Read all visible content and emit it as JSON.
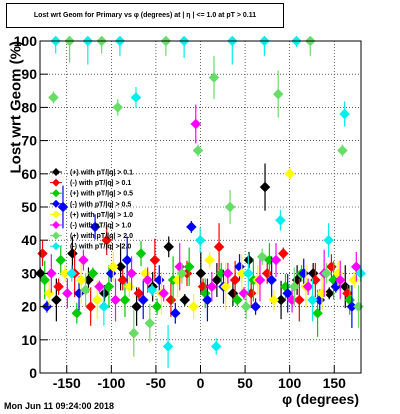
{
  "chart_data": {
    "type": "scatter",
    "title": "Lost wrt Geom for Primary vs φ (degrees) at | η | <= 1.0 at pT > 0.11",
    "xlabel": "φ (degrees)",
    "ylabel": "Lost wrt Geom (%)",
    "xlim": [
      -180,
      180
    ],
    "ylim": [
      0,
      100
    ],
    "xticks": [
      -150,
      -100,
      -50,
      0,
      50,
      100,
      150
    ],
    "yticks": [
      0,
      10,
      20,
      30,
      40,
      50,
      60,
      70,
      80,
      90,
      100
    ],
    "grid": true,
    "legend_position": "left-middle",
    "series": [
      {
        "name": "(+) with pT/|q| > 0.1",
        "color": "#000000",
        "x": [
          -171,
          -153,
          -135,
          -117,
          -99,
          -81,
          -63,
          -45,
          -27,
          -9,
          9,
          27,
          45,
          63,
          81,
          99,
          117,
          135,
          153,
          171
        ],
        "y": [
          30,
          22,
          36,
          28,
          24,
          32,
          20,
          26,
          38,
          22,
          30,
          28,
          24,
          34,
          56,
          22,
          28,
          30,
          24,
          26
        ]
      },
      {
        "name": "(-) with pT/|q| > 0.1",
        "color": "#ff0000",
        "x": [
          -171,
          -153,
          -135,
          -117,
          -99,
          -81,
          -63,
          -45,
          -27,
          -9,
          9,
          27,
          45,
          63,
          81,
          99,
          117,
          135,
          153,
          171
        ],
        "y": [
          36,
          26,
          30,
          20,
          40,
          28,
          24,
          34,
          22,
          30,
          26,
          38,
          28,
          24,
          30,
          36,
          22,
          28,
          32,
          24
        ]
      },
      {
        "name": "(+) with pT/|q| > 0.5",
        "color": "#00cc00",
        "x": [
          -171,
          -153,
          -135,
          -117,
          -99,
          -81,
          -63,
          -45,
          -27,
          -9,
          9,
          27,
          45,
          63,
          81,
          99,
          117,
          135,
          153,
          171
        ],
        "y": [
          28,
          34,
          18,
          30,
          26,
          22,
          36,
          20,
          28,
          32,
          24,
          30,
          22,
          28,
          34,
          26,
          30,
          18,
          28,
          22
        ]
      },
      {
        "name": "(-) with pT/|q| > 0.5",
        "color": "#0000ff",
        "x": [
          -171,
          -153,
          -135,
          -117,
          -99,
          -81,
          -63,
          -45,
          -27,
          -9,
          9,
          27,
          45,
          63,
          81,
          99,
          117,
          135,
          153,
          171
        ],
        "y": [
          20,
          50,
          24,
          44,
          30,
          34,
          22,
          28,
          18,
          44,
          22,
          26,
          32,
          20,
          28,
          24,
          30,
          22,
          26,
          20
        ]
      },
      {
        "name": "(+) with pT/|q| > 1.0",
        "color": "#ffff00",
        "x": [
          -171,
          -153,
          -135,
          -117,
          -99,
          -81,
          -63,
          -45,
          -27,
          -9,
          9,
          27,
          45,
          63,
          81,
          99,
          117,
          135,
          153,
          171
        ],
        "y": [
          24,
          30,
          28,
          22,
          32,
          26,
          30,
          24,
          28,
          20,
          34,
          26,
          30,
          28,
          22,
          60,
          26,
          24,
          30,
          28
        ]
      },
      {
        "name": "(-) with pT/|q| > 1.0",
        "color": "#ff00ff",
        "x": [
          -171,
          -153,
          -135,
          -117,
          -99,
          -81,
          -63,
          -45,
          -27,
          -9,
          9,
          27,
          45,
          63,
          81,
          99,
          117,
          135,
          153,
          171
        ],
        "y": [
          30,
          24,
          34,
          26,
          22,
          30,
          28,
          24,
          32,
          75,
          26,
          30,
          24,
          28,
          34,
          22,
          26,
          30,
          28,
          32
        ]
      },
      {
        "name": "(+) with pT/|q| > 2.0",
        "color": "#66dd66",
        "x": [
          -171,
          -153,
          -135,
          -117,
          -99,
          -81,
          -63,
          -45,
          -27,
          -9,
          9,
          27,
          45,
          63,
          81,
          99,
          117,
          135,
          153,
          171
        ],
        "y": [
          83,
          100,
          25,
          100,
          80,
          12,
          15,
          100,
          30,
          67,
          89,
          50,
          20,
          35,
          84,
          26,
          100,
          30,
          67,
          20
        ]
      },
      {
        "name": "(-) with pT/|q| > 2.0",
        "color": "#00eeee",
        "x": [
          -171,
          -153,
          -135,
          -117,
          -99,
          -81,
          -63,
          -45,
          -27,
          -9,
          9,
          27,
          45,
          63,
          81,
          99,
          117,
          135,
          153,
          171
        ],
        "y": [
          100,
          30,
          100,
          20,
          100,
          83,
          25,
          8,
          100,
          40,
          8,
          100,
          30,
          100,
          46,
          100,
          22,
          40,
          78,
          30
        ]
      }
    ]
  },
  "footer": {
    "timestamp": "Mon Jun 11 09:24:00 2018"
  }
}
